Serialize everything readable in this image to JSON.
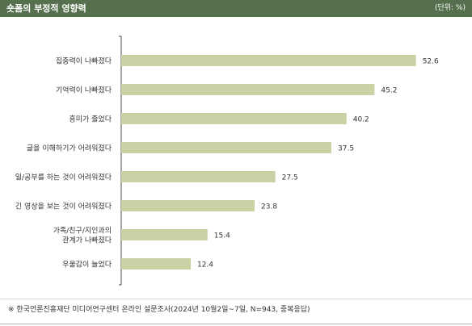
{
  "header": {
    "title": "숏폼의 부정적 영향력",
    "unit": "(단위: %)"
  },
  "colors": {
    "header_bg": "#566f4c",
    "bar": "#c8d2a4",
    "axis": "#666666",
    "text": "#333333"
  },
  "chart_data": {
    "type": "bar",
    "orientation": "horizontal",
    "title": "숏폼의 부정적 영향력",
    "unit": "(단위: %)",
    "categories": [
      "집중력이 나빠졌다",
      "기억력이 나빠졌다",
      "흥미가 줄었다",
      "글을 이해하기가 어려워졌다",
      "일/공부를 하는 것이 어려워졌다",
      "긴 영상을 보는 것이 어려워졌다",
      [
        "가족/친구/지인과의",
        "관계가 나빠졌다"
      ],
      "우울감이 늘었다"
    ],
    "values": [
      52.6,
      45.2,
      40.2,
      37.5,
      27.5,
      23.8,
      15.4,
      12.4
    ],
    "value_labels": [
      "52.6",
      "45.2",
      "40.2",
      "37.5",
      "27.5",
      "23.8",
      "15.4",
      "12.4"
    ],
    "xlim": [
      0,
      60
    ],
    "grid": false,
    "legend": "none"
  },
  "footer": {
    "note": "※ 한국언론진흥재단 미디어연구센터 온라인 설문조사(2024년 10월2일~7일, N=943, 중복응답)"
  }
}
